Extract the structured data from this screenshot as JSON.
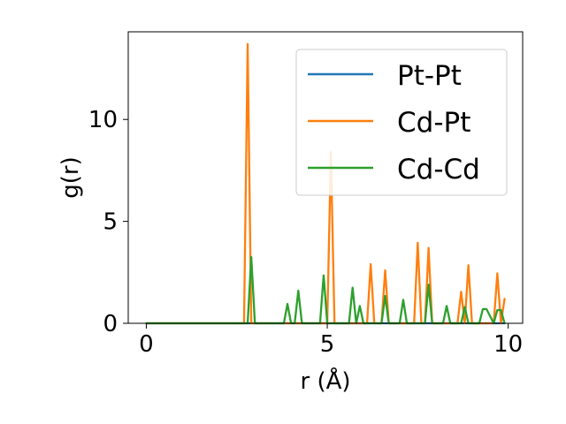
{
  "chart_data": {
    "type": "line",
    "xlabel": "r (Å)",
    "ylabel": "g(r)",
    "xlim": [
      -0.5,
      10.4
    ],
    "ylim": [
      0,
      14.3
    ],
    "xticks": [
      0,
      5,
      10
    ],
    "yticks": [
      0,
      5,
      10
    ],
    "xtick_labels": [
      "0",
      "5",
      "10"
    ],
    "ytick_labels": [
      "0",
      "5",
      "10"
    ],
    "grid": false,
    "legend_position": "top-right",
    "series": [
      {
        "name": "Pt-Pt",
        "color": "#1f77b4",
        "x": [
          0,
          9.9
        ],
        "y": [
          0,
          0
        ]
      },
      {
        "name": "Cd-Pt",
        "color": "#ff7f0e",
        "x": [
          0,
          2.7,
          2.8,
          2.9,
          3.0,
          5.0,
          5.1,
          5.2,
          6.1,
          6.2,
          6.3,
          6.5,
          6.6,
          6.7,
          7.4,
          7.5,
          7.6,
          7.7,
          7.8,
          7.9,
          8.6,
          8.7,
          8.8,
          8.8,
          8.9,
          9.0,
          9.6,
          9.7,
          9.8,
          9.9
        ],
        "y": [
          0,
          0,
          13.7,
          0,
          0,
          0,
          8.4,
          0,
          0,
          2.9,
          0,
          0,
          2.6,
          0,
          0,
          3.95,
          0,
          0,
          3.7,
          0,
          0,
          1.55,
          0,
          0,
          2.85,
          0,
          0,
          2.45,
          0,
          1.2
        ]
      },
      {
        "name": "Cd-Cd",
        "color": "#2ca02c",
        "x": [
          0,
          2.8,
          2.9,
          3.0,
          3.8,
          3.9,
          4.0,
          4.1,
          4.2,
          4.3,
          4.8,
          4.9,
          5.0,
          5.6,
          5.7,
          5.8,
          5.9,
          6.0,
          6.5,
          6.6,
          6.7,
          7.0,
          7.1,
          7.2,
          7.7,
          7.8,
          7.9,
          8.2,
          8.3,
          8.4,
          8.7,
          8.8,
          8.9,
          9.2,
          9.3,
          9.4,
          9.6,
          9.7,
          9.8,
          9.9
        ],
        "y": [
          0,
          0,
          3.25,
          0,
          0,
          0.95,
          0,
          0,
          1.6,
          0,
          0,
          2.35,
          0,
          0,
          1.75,
          0,
          0.85,
          0,
          0,
          1.35,
          0,
          0,
          1.15,
          0,
          0,
          1.9,
          0,
          0,
          0.85,
          0,
          0,
          0.8,
          0,
          0,
          0.7,
          0.7,
          0,
          0.65,
          0.65,
          0
        ]
      }
    ]
  }
}
